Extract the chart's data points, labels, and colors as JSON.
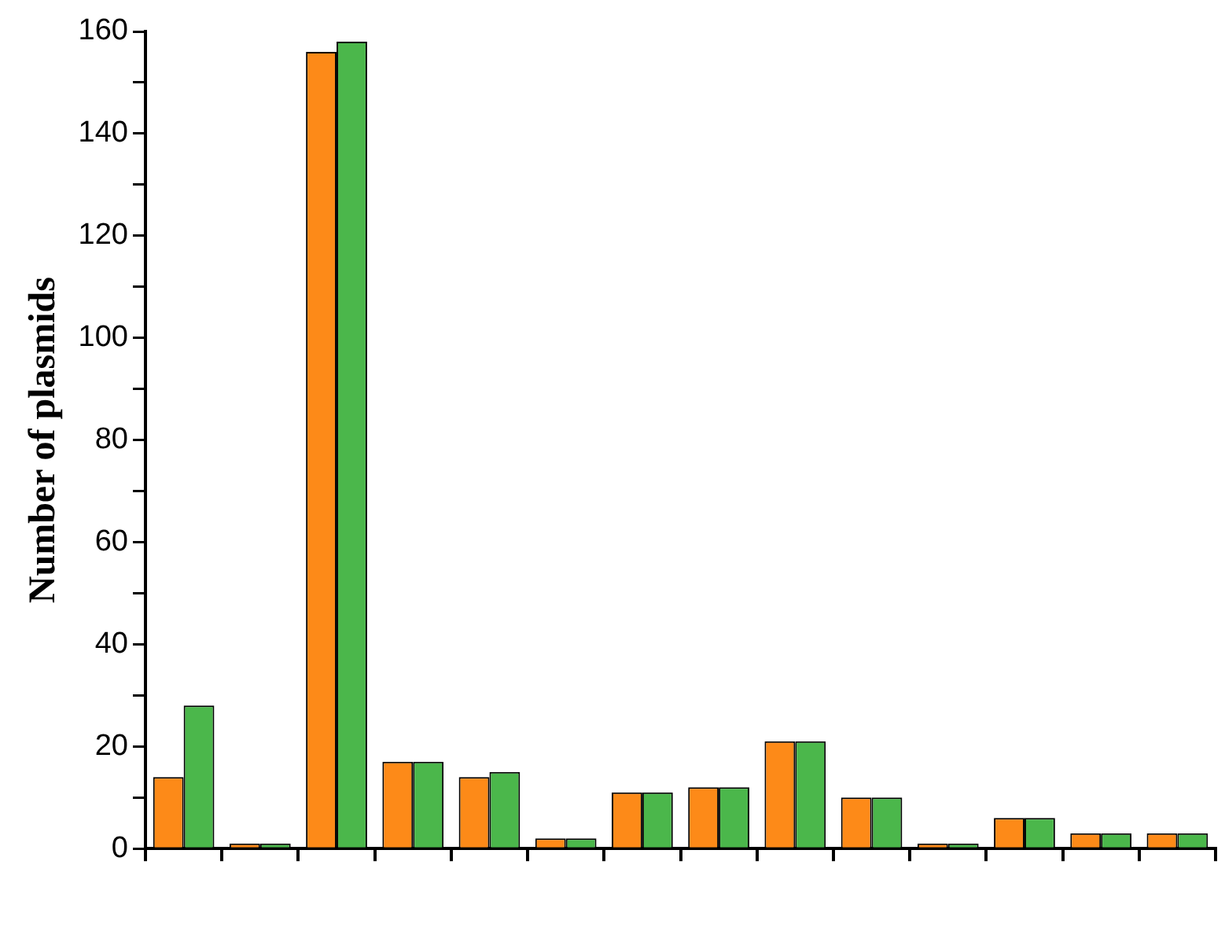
{
  "chart_data": {
    "type": "bar",
    "ylabel": "Number of plasmids",
    "categories": [
      null,
      null,
      null,
      null,
      null,
      null,
      null,
      null,
      null,
      null,
      null,
      null,
      null,
      null
    ],
    "series": [
      {
        "color": "#fd8a18",
        "values": [
          14,
          1,
          156,
          17,
          14,
          2,
          11,
          12,
          21,
          10,
          1,
          6,
          3,
          3
        ]
      },
      {
        "color": "#4bb74b",
        "values": [
          28,
          1,
          158,
          17,
          15,
          2,
          11,
          12,
          21,
          10,
          1,
          6,
          3,
          3
        ]
      }
    ],
    "ylim": [
      0,
      160
    ],
    "yticks": [
      0,
      {
        "value": 10,
        "label": null
      },
      20,
      {
        "value": 30,
        "label": null
      },
      40,
      {
        "value": 50,
        "label": null
      },
      60,
      {
        "value": 70,
        "label": null
      },
      80,
      {
        "value": 90,
        "label": null
      },
      100,
      {
        "value": 110,
        "label": null
      },
      120,
      {
        "value": 130,
        "label": null
      },
      140,
      {
        "value": 150,
        "label": null
      },
      160
    ],
    "grid": false,
    "legend": false
  }
}
